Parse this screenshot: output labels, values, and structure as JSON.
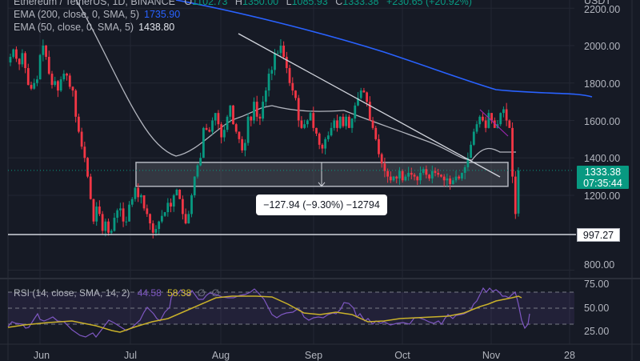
{
  "header": {
    "symbol_line": "Ethereum / TetherUS, 1D, BINANCE",
    "ohlc": {
      "open_label": "O",
      "open": "1102.73",
      "high_label": "H",
      "high": "1350.00",
      "low_label": "L",
      "low": "1085.93",
      "close_label": "C",
      "close": "1333.38",
      "change": "+230.65 (+20.92%)"
    },
    "currency": "USDT"
  },
  "indicators": {
    "ema200": {
      "label": "EMA (200, close, 0, SMA, 5)",
      "value": "1735.90",
      "color": "#2962ff"
    },
    "ema50": {
      "label": "EMA (50, close, 0, SMA, 5)",
      "value": "1438.80",
      "color": "#d1d4dc"
    },
    "rsi": {
      "label": "RSI (14, close, SMA, 14, 2)",
      "value": "44.58",
      "sma_value": "58.38",
      "extra1": "∅",
      "extra2": "∅",
      "color": "#7e57c2",
      "sma_color": "#c9b12a"
    }
  },
  "price_axis": {
    "labels": [
      "2200.00",
      "2000.00",
      "1800.00",
      "1600.00",
      "1400.00",
      "1200.00",
      "800.00"
    ],
    "current_price": "1333.38",
    "countdown": "07:35:44",
    "level_line": "997.27"
  },
  "rsi_axis": {
    "labels": [
      "75.00",
      "50.00",
      "25.00"
    ]
  },
  "time_axis": {
    "labels": [
      "Jun",
      "Jul",
      "Aug",
      "Sep",
      "Oct",
      "Nov",
      "28"
    ]
  },
  "measure": {
    "label": "−127.94 (−9.30%) −12794"
  },
  "colors": {
    "up": "#089981",
    "down": "#f23645",
    "background": "#161a25",
    "grid": "#232733"
  },
  "chart_data": {
    "type": "candlestick",
    "title": "Ethereum / TetherUS, 1D, BINANCE",
    "xlabel": "",
    "ylabel": "USDT",
    "ylim": [
      760,
      2240
    ],
    "x_ticks": [
      "Jun",
      "Jul",
      "Aug",
      "Sep",
      "Oct",
      "Nov",
      "28"
    ],
    "y_ticks": [
      800,
      1200,
      1400,
      1600,
      1800,
      2000,
      2200
    ],
    "series": [
      {
        "name": "ETHUSDT close (approx)",
        "type": "candlestick",
        "values": [
          1940,
          1980,
          1930,
          1900,
          1960,
          1880,
          1790,
          1770,
          1800,
          1820,
          1950,
          2000,
          1940,
          1850,
          1790,
          1810,
          1760,
          1820,
          1850,
          1840,
          1780,
          1760,
          1620,
          1540,
          1460,
          1400,
          1300,
          1180,
          1060,
          1140,
          1100,
          1010,
          1060,
          1000,
          1010,
          1080,
          1120,
          1130,
          1060,
          1060,
          1150,
          1180,
          1240,
          1190,
          1200,
          1130,
          1100,
          1050,
          1000,
          1020,
          1060,
          1090,
          1110,
          1160,
          1140,
          1200,
          1230,
          1180,
          1100,
          1050,
          1100,
          1200,
          1300,
          1360,
          1400,
          1560,
          1550,
          1540,
          1600,
          1640,
          1580,
          1510,
          1550,
          1620,
          1680,
          1580,
          1540,
          1500,
          1440,
          1480,
          1620,
          1600,
          1700,
          1620,
          1610,
          1700,
          1760,
          1850,
          1870,
          1960,
          1960,
          2000,
          1940,
          1880,
          1800,
          1760,
          1720,
          1600,
          1560,
          1580,
          1600,
          1640,
          1560,
          1530,
          1470,
          1450,
          1500,
          1520,
          1560,
          1600,
          1560,
          1620,
          1570,
          1620,
          1560,
          1610,
          1680,
          1720,
          1760,
          1750,
          1700,
          1600,
          1560,
          1500,
          1420,
          1370,
          1330,
          1300,
          1280,
          1300,
          1290,
          1330,
          1280,
          1300,
          1320,
          1310,
          1300,
          1280,
          1320,
          1340,
          1310,
          1290,
          1330,
          1320,
          1310,
          1300,
          1280,
          1290,
          1260,
          1280,
          1300,
          1290,
          1320,
          1350,
          1400,
          1470,
          1540,
          1580,
          1620,
          1600,
          1560,
          1640,
          1600,
          1560,
          1580,
          1640,
          1660,
          1600,
          1560,
          1300,
          1100,
          1333
        ]
      },
      {
        "name": "EMA 200",
        "values_start": 2260,
        "values_end": 1735.9
      },
      {
        "name": "EMA 50",
        "values_end": 1438.8
      },
      {
        "name": "Horizontal level",
        "value": 997.27
      },
      {
        "name": "Rectangle zone",
        "top": 1376,
        "bottom": 1248
      },
      {
        "name": "RSI 14",
        "last": 44.58,
        "range": [
          25,
          75
        ]
      },
      {
        "name": "RSI SMA 14",
        "last": 58.38
      }
    ],
    "annotations": [
      {
        "type": "trendline",
        "from": "Aug high ~2020",
        "to": "late Oct ~1300"
      },
      {
        "type": "measure",
        "text": "−127.94 (−9.30%) −12794"
      },
      {
        "type": "hline",
        "value": 997.27
      }
    ],
    "grid": true,
    "legend_position": "top-left"
  }
}
